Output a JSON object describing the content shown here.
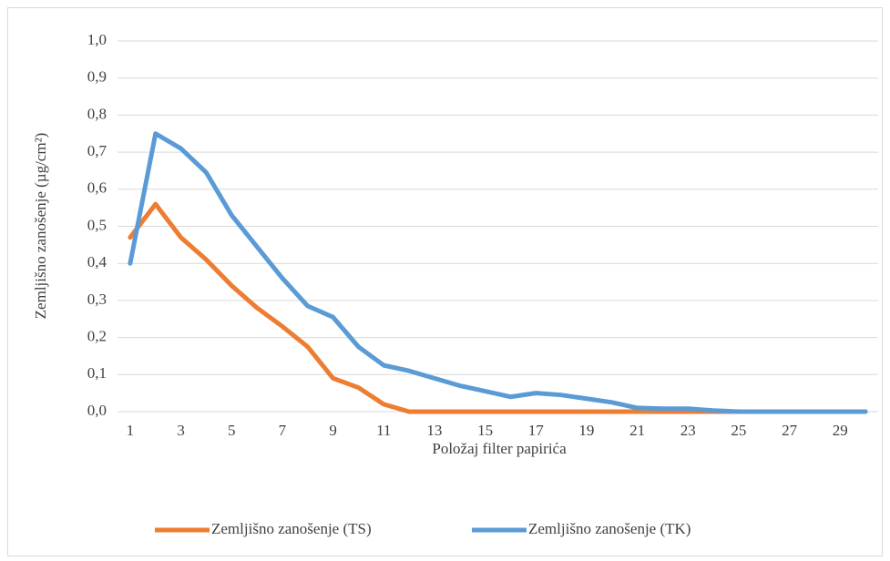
{
  "chart_data": {
    "type": "line",
    "x_label": "Položaj filter papirića",
    "y_label": "Zemljišno zanošenje (µg/cm²)",
    "categories": [
      1,
      null,
      3,
      null,
      5,
      null,
      7,
      null,
      9,
      null,
      11,
      null,
      13,
      null,
      15,
      null,
      17,
      null,
      19,
      null,
      21,
      null,
      23,
      null,
      25,
      null,
      27,
      null,
      29,
      null
    ],
    "series": [
      {
        "name": "Zemljišno zanošenje (TS)",
        "color": "#ed7d31",
        "values": [
          0.47,
          0.56,
          0.47,
          0.41,
          0.34,
          0.28,
          0.23,
          0.175,
          0.09,
          0.065,
          0.02,
          0,
          0,
          0,
          0,
          0,
          0,
          0,
          0,
          0,
          0,
          0,
          0,
          0,
          0,
          0,
          0,
          0,
          0,
          0
        ]
      },
      {
        "name": "Zemljišno zanošenje (TK)",
        "color": "#5b9bd5",
        "values": [
          0.4,
          0.75,
          0.71,
          0.645,
          0.53,
          0.445,
          0.36,
          0.285,
          0.255,
          0.175,
          0.125,
          0.11,
          0.09,
          0.07,
          0.055,
          0.04,
          0.05,
          0.045,
          0.035,
          0.025,
          0.01,
          0.008,
          0.008,
          0.003,
          0,
          0,
          0,
          0,
          0,
          0
        ]
      }
    ],
    "ylim": [
      0,
      1
    ],
    "yticks": [
      {
        "value": 0,
        "label": "0,0"
      },
      {
        "value": 0.1,
        "label": "0,1"
      },
      {
        "value": 0.2,
        "label": "0,2"
      },
      {
        "value": 0.3,
        "label": "0,3"
      },
      {
        "value": 0.4,
        "label": "0,4"
      },
      {
        "value": 0.5,
        "label": "0,5"
      },
      {
        "value": 0.6,
        "label": "0,6"
      },
      {
        "value": 0.7,
        "label": "0,7"
      },
      {
        "value": 0.8,
        "label": "0,8"
      },
      {
        "value": 0.9,
        "label": "0,9"
      },
      {
        "value": 1,
        "label": "1,0"
      }
    ],
    "grid": true,
    "legend": "bottom"
  }
}
